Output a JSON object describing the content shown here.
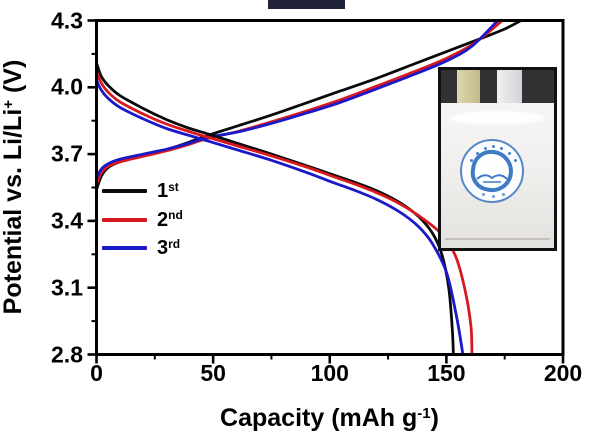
{
  "chart_data": {
    "type": "line",
    "title": "",
    "xlabel_main": "Capacity (mAh g",
    "xlabel_sup": "-1",
    "xlabel_end": ")",
    "ylabel_main": "Potential vs. Li/Li",
    "ylabel_sup": "+",
    "ylabel_end": " (V)",
    "xlim": [
      0,
      200
    ],
    "ylim": [
      2.8,
      4.3
    ],
    "x_major_ticks": [
      0,
      50,
      100,
      150,
      200
    ],
    "x_minor_ticks": [
      25,
      75,
      125,
      175
    ],
    "y_major_ticks": [
      2.8,
      3.1,
      3.4,
      3.7,
      4.0,
      4.3
    ],
    "y_minor_ticks": [
      2.95,
      3.25,
      3.55,
      3.85,
      4.15
    ],
    "grid": false,
    "legend_position": "center-left",
    "legend": [
      {
        "base": "1",
        "sup": "st",
        "color": "#0a0a0a"
      },
      {
        "base": "2",
        "sup": "nd",
        "color": "#d8191f"
      },
      {
        "base": "3",
        "sup": "rd",
        "color": "#1a18c8"
      }
    ],
    "series": [
      {
        "name": "1st charge",
        "color": "#0a0a0a",
        "points": [
          [
            0,
            3.54
          ],
          [
            2,
            3.6
          ],
          [
            5,
            3.64
          ],
          [
            10,
            3.665
          ],
          [
            20,
            3.695
          ],
          [
            30,
            3.72
          ],
          [
            40,
            3.755
          ],
          [
            48,
            3.785
          ],
          [
            60,
            3.825
          ],
          [
            75,
            3.875
          ],
          [
            90,
            3.93
          ],
          [
            105,
            3.985
          ],
          [
            120,
            4.04
          ],
          [
            135,
            4.1
          ],
          [
            150,
            4.16
          ],
          [
            165,
            4.22
          ],
          [
            175,
            4.262
          ],
          [
            182,
            4.3
          ]
        ]
      },
      {
        "name": "2nd charge",
        "color": "#d8191f",
        "points": [
          [
            0,
            3.565
          ],
          [
            2,
            3.615
          ],
          [
            5,
            3.645
          ],
          [
            10,
            3.665
          ],
          [
            20,
            3.69
          ],
          [
            30,
            3.715
          ],
          [
            40,
            3.745
          ],
          [
            48,
            3.772
          ],
          [
            60,
            3.8
          ],
          [
            75,
            3.845
          ],
          [
            90,
            3.893
          ],
          [
            105,
            3.945
          ],
          [
            120,
            4.005
          ],
          [
            135,
            4.065
          ],
          [
            150,
            4.13
          ],
          [
            162,
            4.198
          ],
          [
            174,
            4.3
          ]
        ]
      },
      {
        "name": "3rd charge",
        "color": "#1a18c8",
        "points": [
          [
            0,
            3.592
          ],
          [
            2,
            3.632
          ],
          [
            5,
            3.657
          ],
          [
            10,
            3.677
          ],
          [
            20,
            3.7
          ],
          [
            30,
            3.722
          ],
          [
            40,
            3.75
          ],
          [
            48,
            3.776
          ],
          [
            60,
            3.798
          ],
          [
            75,
            3.838
          ],
          [
            90,
            3.884
          ],
          [
            105,
            3.934
          ],
          [
            120,
            3.993
          ],
          [
            135,
            4.053
          ],
          [
            150,
            4.118
          ],
          [
            161,
            4.185
          ],
          [
            172,
            4.3
          ]
        ]
      },
      {
        "name": "1st discharge",
        "color": "#0a0a0a",
        "points": [
          [
            0,
            4.11
          ],
          [
            2,
            4.05
          ],
          [
            5,
            4.008
          ],
          [
            10,
            3.963
          ],
          [
            20,
            3.905
          ],
          [
            30,
            3.855
          ],
          [
            40,
            3.815
          ],
          [
            48,
            3.79
          ],
          [
            60,
            3.75
          ],
          [
            75,
            3.7
          ],
          [
            90,
            3.648
          ],
          [
            100,
            3.612
          ],
          [
            110,
            3.576
          ],
          [
            120,
            3.536
          ],
          [
            130,
            3.482
          ],
          [
            138,
            3.42
          ],
          [
            144,
            3.345
          ],
          [
            148,
            3.252
          ],
          [
            151,
            3.1
          ],
          [
            152.5,
            2.92
          ],
          [
            153,
            2.8
          ]
        ]
      },
      {
        "name": "2nd discharge",
        "color": "#d8191f",
        "points": [
          [
            0,
            4.072
          ],
          [
            2,
            4.02
          ],
          [
            5,
            3.978
          ],
          [
            10,
            3.935
          ],
          [
            20,
            3.88
          ],
          [
            30,
            3.835
          ],
          [
            40,
            3.8
          ],
          [
            48,
            3.775
          ],
          [
            60,
            3.738
          ],
          [
            75,
            3.692
          ],
          [
            90,
            3.642
          ],
          [
            100,
            3.605
          ],
          [
            110,
            3.568
          ],
          [
            120,
            3.527
          ],
          [
            130,
            3.477
          ],
          [
            140,
            3.41
          ],
          [
            148,
            3.34
          ],
          [
            154,
            3.24
          ],
          [
            158,
            3.09
          ],
          [
            160.5,
            2.93
          ],
          [
            161,
            2.8
          ]
        ]
      },
      {
        "name": "3rd discharge",
        "color": "#1a18c8",
        "points": [
          [
            0,
            4.032
          ],
          [
            2,
            3.988
          ],
          [
            5,
            3.95
          ],
          [
            10,
            3.91
          ],
          [
            20,
            3.858
          ],
          [
            30,
            3.815
          ],
          [
            40,
            3.783
          ],
          [
            48,
            3.758
          ],
          [
            60,
            3.72
          ],
          [
            75,
            3.672
          ],
          [
            90,
            3.618
          ],
          [
            100,
            3.578
          ],
          [
            110,
            3.54
          ],
          [
            120,
            3.497
          ],
          [
            130,
            3.44
          ],
          [
            138,
            3.375
          ],
          [
            144,
            3.298
          ],
          [
            150,
            3.17
          ],
          [
            154,
            2.99
          ],
          [
            156.5,
            2.84
          ],
          [
            157,
            2.8
          ]
        ]
      }
    ]
  },
  "inset": {
    "type": "photo",
    "frame_color": "#101010",
    "tab_band_color": "#323234",
    "tab_left_color": "#cfc69a",
    "tab_right_color": "#dfdfe3",
    "pouch_color": "#f1f0ee",
    "emblem_ring_color": "#4a82c4"
  },
  "header_remnant_color": "#212438"
}
